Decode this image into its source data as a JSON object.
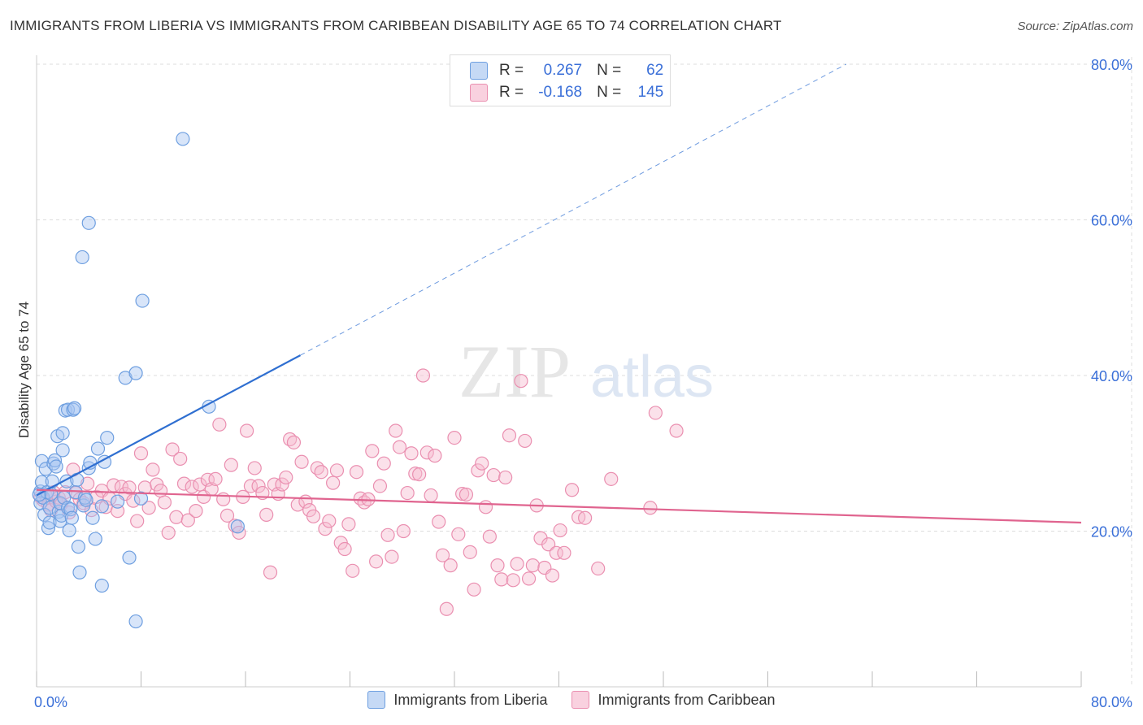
{
  "title": "IMMIGRANTS FROM LIBERIA VS IMMIGRANTS FROM CARIBBEAN DISABILITY AGE 65 TO 74 CORRELATION CHART",
  "source": "Source: ZipAtlas.com",
  "watermark": {
    "zip": "ZIP",
    "atlas": "atlas"
  },
  "colors": {
    "liberia_fill": "#a9c6f2",
    "liberia_stroke": "#6e9fe0",
    "liberia_line": "#2f6fd1",
    "caribbean_fill": "#f6bdd0",
    "caribbean_stroke": "#ea8fb0",
    "caribbean_line": "#e0648f",
    "axis_text": "#3a6fd8",
    "grid": "#dddddd"
  },
  "legend_box": {
    "rows": [
      {
        "r_label": "R =",
        "r_value": "0.267",
        "n_label": "N =",
        "n_value": "62"
      },
      {
        "r_label": "R =",
        "r_value": "-0.168",
        "n_label": "N =",
        "n_value": "145"
      }
    ]
  },
  "chart_data": {
    "type": "scatter",
    "title": "IMMIGRANTS FROM LIBERIA VS IMMIGRANTS FROM CARIBBEAN DISABILITY AGE 65 TO 74 CORRELATION CHART",
    "xlabel": "",
    "ylabel": "Disability Age 65 to 74",
    "xlim": [
      0,
      80
    ],
    "ylim": [
      0,
      80
    ],
    "x_tick_labels": [
      "0.0%",
      "80.0%"
    ],
    "y_ticks": [
      20,
      40,
      60,
      80
    ],
    "y_tick_labels": [
      "20.0%",
      "40.0%",
      "60.0%",
      "80.0%"
    ],
    "grid": true,
    "legend": [
      "Immigrants from Liberia",
      "Immigrants from Caribbean"
    ],
    "series": [
      {
        "name": "Immigrants from Liberia",
        "r": 0.267,
        "n": 62,
        "trend": {
          "x0": 0,
          "y0": 24.6,
          "x1": 20.2,
          "y1": 42.6,
          "dashed_to_x": 62,
          "dashed_to_y": 80
        },
        "points": [
          [
            0.3,
            25.1
          ],
          [
            0.3,
            23.6
          ],
          [
            0.4,
            26.3
          ],
          [
            0.4,
            29.0
          ],
          [
            0.5,
            24.3
          ],
          [
            0.6,
            22.1
          ],
          [
            0.7,
            28.0
          ],
          [
            0.8,
            25.0
          ],
          [
            0.9,
            20.4
          ],
          [
            1.0,
            23.0
          ],
          [
            1.0,
            21.1
          ],
          [
            1.1,
            24.8
          ],
          [
            1.2,
            26.4
          ],
          [
            1.3,
            28.7
          ],
          [
            1.4,
            29.1
          ],
          [
            1.5,
            28.3
          ],
          [
            1.6,
            32.2
          ],
          [
            1.7,
            22.5
          ],
          [
            1.8,
            23.6
          ],
          [
            1.8,
            21.3
          ],
          [
            1.9,
            22.0
          ],
          [
            2.0,
            32.6
          ],
          [
            2.0,
            30.4
          ],
          [
            2.1,
            24.3
          ],
          [
            2.2,
            35.5
          ],
          [
            2.3,
            26.4
          ],
          [
            2.4,
            35.6
          ],
          [
            2.4,
            23.0
          ],
          [
            2.5,
            20.1
          ],
          [
            2.6,
            22.8
          ],
          [
            2.7,
            21.7
          ],
          [
            2.8,
            35.6
          ],
          [
            2.9,
            35.8
          ],
          [
            3.0,
            25.0
          ],
          [
            3.1,
            26.6
          ],
          [
            3.2,
            18.0
          ],
          [
            3.3,
            14.7
          ],
          [
            3.5,
            55.2
          ],
          [
            3.6,
            23.3
          ],
          [
            3.7,
            24.3
          ],
          [
            3.8,
            24.0
          ],
          [
            4.0,
            28.1
          ],
          [
            4.0,
            59.6
          ],
          [
            4.1,
            28.8
          ],
          [
            4.3,
            21.7
          ],
          [
            4.5,
            19.0
          ],
          [
            4.7,
            30.6
          ],
          [
            5.0,
            23.2
          ],
          [
            5.0,
            13.0
          ],
          [
            5.2,
            28.9
          ],
          [
            5.4,
            32.0
          ],
          [
            6.2,
            23.8
          ],
          [
            6.8,
            39.7
          ],
          [
            7.1,
            16.6
          ],
          [
            7.6,
            40.3
          ],
          [
            7.6,
            8.4
          ],
          [
            8.0,
            24.2
          ],
          [
            8.1,
            49.6
          ],
          [
            11.2,
            70.4
          ],
          [
            13.2,
            36.0
          ],
          [
            15.4,
            20.6
          ],
          [
            0.2,
            24.7
          ]
        ]
      },
      {
        "name": "Immigrants from Caribbean",
        "r": -0.168,
        "n": 145,
        "trend": {
          "x0": 0,
          "y0": 25.3,
          "x1": 80,
          "y1": 21.1
        },
        "points": [
          [
            0.3,
            24.4
          ],
          [
            0.5,
            24.0
          ],
          [
            0.7,
            24.6
          ],
          [
            0.9,
            23.4
          ],
          [
            1.1,
            22.7
          ],
          [
            1.3,
            25.0
          ],
          [
            1.5,
            23.8
          ],
          [
            1.7,
            24.3
          ],
          [
            1.9,
            23.5
          ],
          [
            2.2,
            25.0
          ],
          [
            2.5,
            22.4
          ],
          [
            2.8,
            27.9
          ],
          [
            3.0,
            24.9
          ],
          [
            3.3,
            24.1
          ],
          [
            3.6,
            23.6
          ],
          [
            3.9,
            26.1
          ],
          [
            4.2,
            22.7
          ],
          [
            4.6,
            24.4
          ],
          [
            5.0,
            25.2
          ],
          [
            5.3,
            23.1
          ],
          [
            5.6,
            24.2
          ],
          [
            5.9,
            25.9
          ],
          [
            6.2,
            22.6
          ],
          [
            6.5,
            25.7
          ],
          [
            6.8,
            24.8
          ],
          [
            7.1,
            25.6
          ],
          [
            7.4,
            23.9
          ],
          [
            7.7,
            21.3
          ],
          [
            8.0,
            30.0
          ],
          [
            8.3,
            25.6
          ],
          [
            8.6,
            23.0
          ],
          [
            8.9,
            27.9
          ],
          [
            9.2,
            26.0
          ],
          [
            9.5,
            25.2
          ],
          [
            9.8,
            23.7
          ],
          [
            10.1,
            19.8
          ],
          [
            10.4,
            30.5
          ],
          [
            10.7,
            21.8
          ],
          [
            11.0,
            29.3
          ],
          [
            11.3,
            26.1
          ],
          [
            11.6,
            21.4
          ],
          [
            11.9,
            25.7
          ],
          [
            12.2,
            22.6
          ],
          [
            12.5,
            26.0
          ],
          [
            12.8,
            24.4
          ],
          [
            13.1,
            26.6
          ],
          [
            13.4,
            25.4
          ],
          [
            13.7,
            26.7
          ],
          [
            14.0,
            33.7
          ],
          [
            14.3,
            24.1
          ],
          [
            14.6,
            22.0
          ],
          [
            14.9,
            28.5
          ],
          [
            15.2,
            20.7
          ],
          [
            15.5,
            19.8
          ],
          [
            15.8,
            24.4
          ],
          [
            16.1,
            32.9
          ],
          [
            16.4,
            25.8
          ],
          [
            16.7,
            28.1
          ],
          [
            17.0,
            25.8
          ],
          [
            17.3,
            24.9
          ],
          [
            17.6,
            22.1
          ],
          [
            17.9,
            14.7
          ],
          [
            18.2,
            26.0
          ],
          [
            18.5,
            24.8
          ],
          [
            18.8,
            26.0
          ],
          [
            19.1,
            26.9
          ],
          [
            19.4,
            31.8
          ],
          [
            19.7,
            31.4
          ],
          [
            20.0,
            23.4
          ],
          [
            20.3,
            28.9
          ],
          [
            20.6,
            23.8
          ],
          [
            20.9,
            22.7
          ],
          [
            21.2,
            21.9
          ],
          [
            21.5,
            28.1
          ],
          [
            21.8,
            27.6
          ],
          [
            22.1,
            20.3
          ],
          [
            22.4,
            21.3
          ],
          [
            22.7,
            26.2
          ],
          [
            23.0,
            27.8
          ],
          [
            23.3,
            18.5
          ],
          [
            23.6,
            17.7
          ],
          [
            23.9,
            20.9
          ],
          [
            24.2,
            14.9
          ],
          [
            24.5,
            27.6
          ],
          [
            24.8,
            24.2
          ],
          [
            25.1,
            23.7
          ],
          [
            25.4,
            24.1
          ],
          [
            25.7,
            30.3
          ],
          [
            26.0,
            16.1
          ],
          [
            26.3,
            25.8
          ],
          [
            26.6,
            28.7
          ],
          [
            26.9,
            19.5
          ],
          [
            27.2,
            16.7
          ],
          [
            27.5,
            32.9
          ],
          [
            27.8,
            30.8
          ],
          [
            28.1,
            20.0
          ],
          [
            28.4,
            24.9
          ],
          [
            28.7,
            30.0
          ],
          [
            29.0,
            27.4
          ],
          [
            29.3,
            27.3
          ],
          [
            29.6,
            40.0
          ],
          [
            29.9,
            30.1
          ],
          [
            30.2,
            24.6
          ],
          [
            30.5,
            29.7
          ],
          [
            30.8,
            21.2
          ],
          [
            31.1,
            16.9
          ],
          [
            31.4,
            10.0
          ],
          [
            31.7,
            15.6
          ],
          [
            32.0,
            32.0
          ],
          [
            32.3,
            19.6
          ],
          [
            32.6,
            24.8
          ],
          [
            32.9,
            24.7
          ],
          [
            33.2,
            17.3
          ],
          [
            33.5,
            12.5
          ],
          [
            33.8,
            27.8
          ],
          [
            34.1,
            28.7
          ],
          [
            34.4,
            23.1
          ],
          [
            34.7,
            19.3
          ],
          [
            35.0,
            27.2
          ],
          [
            35.3,
            15.6
          ],
          [
            35.6,
            13.8
          ],
          [
            35.9,
            26.9
          ],
          [
            36.2,
            32.3
          ],
          [
            36.5,
            13.7
          ],
          [
            36.8,
            15.8
          ],
          [
            37.1,
            39.3
          ],
          [
            37.4,
            31.6
          ],
          [
            37.7,
            13.9
          ],
          [
            38.0,
            15.6
          ],
          [
            38.3,
            23.3
          ],
          [
            38.6,
            19.1
          ],
          [
            38.9,
            15.3
          ],
          [
            39.2,
            18.3
          ],
          [
            39.5,
            14.3
          ],
          [
            39.8,
            17.2
          ],
          [
            40.1,
            20.1
          ],
          [
            40.4,
            17.2
          ],
          [
            41.0,
            25.3
          ],
          [
            41.5,
            21.8
          ],
          [
            42.0,
            21.7
          ],
          [
            43.0,
            15.2
          ],
          [
            44.0,
            26.7
          ],
          [
            47.0,
            23.0
          ],
          [
            47.4,
            35.2
          ],
          [
            49.0,
            32.9
          ]
        ]
      }
    ]
  }
}
